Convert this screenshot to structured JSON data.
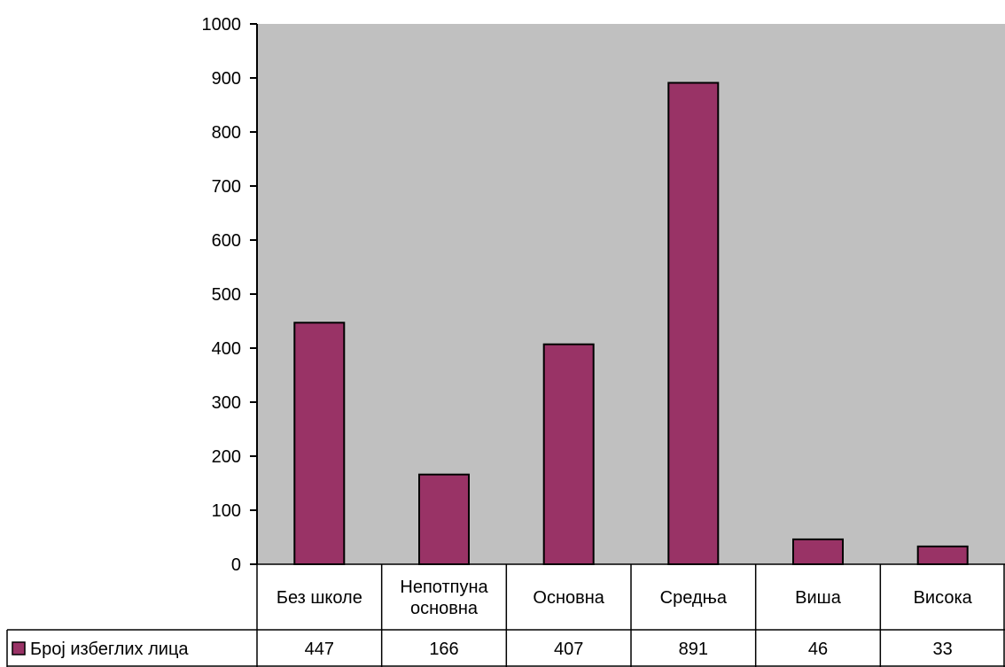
{
  "chart_data": {
    "type": "bar",
    "categories": [
      [
        "Без школе"
      ],
      [
        "Непотпуна",
        "основна"
      ],
      [
        "Основна"
      ],
      [
        "Средња"
      ],
      [
        "Виша"
      ],
      [
        "Висока"
      ]
    ],
    "series": [
      {
        "name": "Број избеглих лица",
        "values": [
          447,
          166,
          407,
          891,
          46,
          33
        ]
      }
    ],
    "ylim": [
      0,
      1000
    ],
    "yticks": [
      0,
      100,
      200,
      300,
      400,
      500,
      600,
      700,
      800,
      900,
      1000
    ],
    "grid": false,
    "plot_background": "#c0c0c0",
    "bar_color": "#993366",
    "data_table": true
  }
}
